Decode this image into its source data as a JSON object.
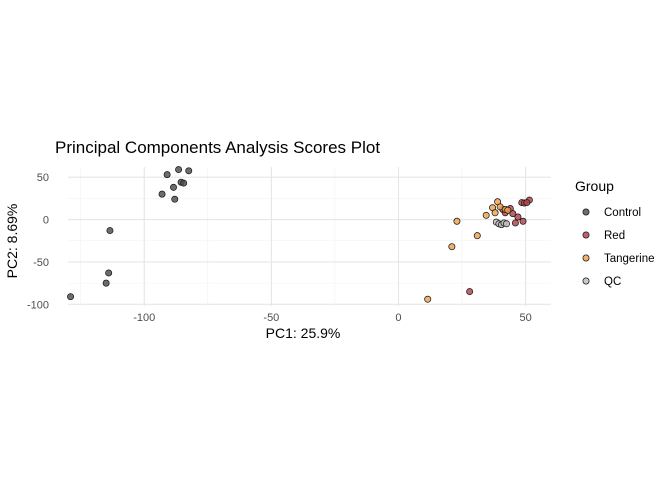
{
  "chart_data": {
    "type": "scatter",
    "title": "Principal Components Analysis Scores Plot",
    "xlabel": "PC1: 25.9%",
    "ylabel": "PC2: 8.69%",
    "xlim": [
      -130,
      60
    ],
    "ylim": [
      -102,
      62
    ],
    "x_ticks": [
      -100,
      -50,
      0,
      50
    ],
    "y_ticks": [
      -100,
      -50,
      0,
      50
    ],
    "x_tick_labels": [
      "-100",
      "-50",
      "0",
      "50"
    ],
    "y_tick_labels": [
      "-100",
      "-50",
      "0",
      "50"
    ],
    "grid": true,
    "legend_title": "Group",
    "legend_position": "right",
    "series": [
      {
        "name": "Control",
        "color": "#4d4d4d",
        "points": [
          [
            -86.5,
            59
          ],
          [
            -82.5,
            57.5
          ],
          [
            -91,
            53
          ],
          [
            -85.5,
            44
          ],
          [
            -84.5,
            43
          ],
          [
            -88.5,
            38
          ],
          [
            -93,
            30
          ],
          [
            -88,
            24
          ],
          [
            -113.5,
            -13
          ],
          [
            -114,
            -63
          ],
          [
            -115,
            -75
          ],
          [
            -129,
            -91
          ]
        ]
      },
      {
        "name": "Red",
        "color": "#b2404b",
        "points": [
          [
            51.5,
            23
          ],
          [
            48.5,
            20
          ],
          [
            49.5,
            19.5
          ],
          [
            50.5,
            20
          ],
          [
            44,
            13
          ],
          [
            41,
            12
          ],
          [
            42,
            8
          ],
          [
            45,
            7
          ],
          [
            47,
            3
          ],
          [
            49,
            -2
          ],
          [
            46,
            -4
          ],
          [
            28,
            -85
          ]
        ]
      },
      {
        "name": "Tangerine",
        "color": "#f2a04a",
        "points": [
          [
            39,
            21
          ],
          [
            37,
            14
          ],
          [
            40,
            15
          ],
          [
            42,
            12
          ],
          [
            34.5,
            5
          ],
          [
            38,
            8
          ],
          [
            43,
            11
          ],
          [
            23,
            -2
          ],
          [
            31,
            -19
          ],
          [
            21,
            -32
          ],
          [
            11.5,
            -94
          ]
        ]
      },
      {
        "name": "QC",
        "color": "#bebebe",
        "points": [
          [
            38.5,
            -3
          ],
          [
            39.5,
            -5
          ],
          [
            40.5,
            -6
          ],
          [
            41.5,
            -4
          ],
          [
            42.5,
            -5
          ]
        ]
      }
    ]
  }
}
